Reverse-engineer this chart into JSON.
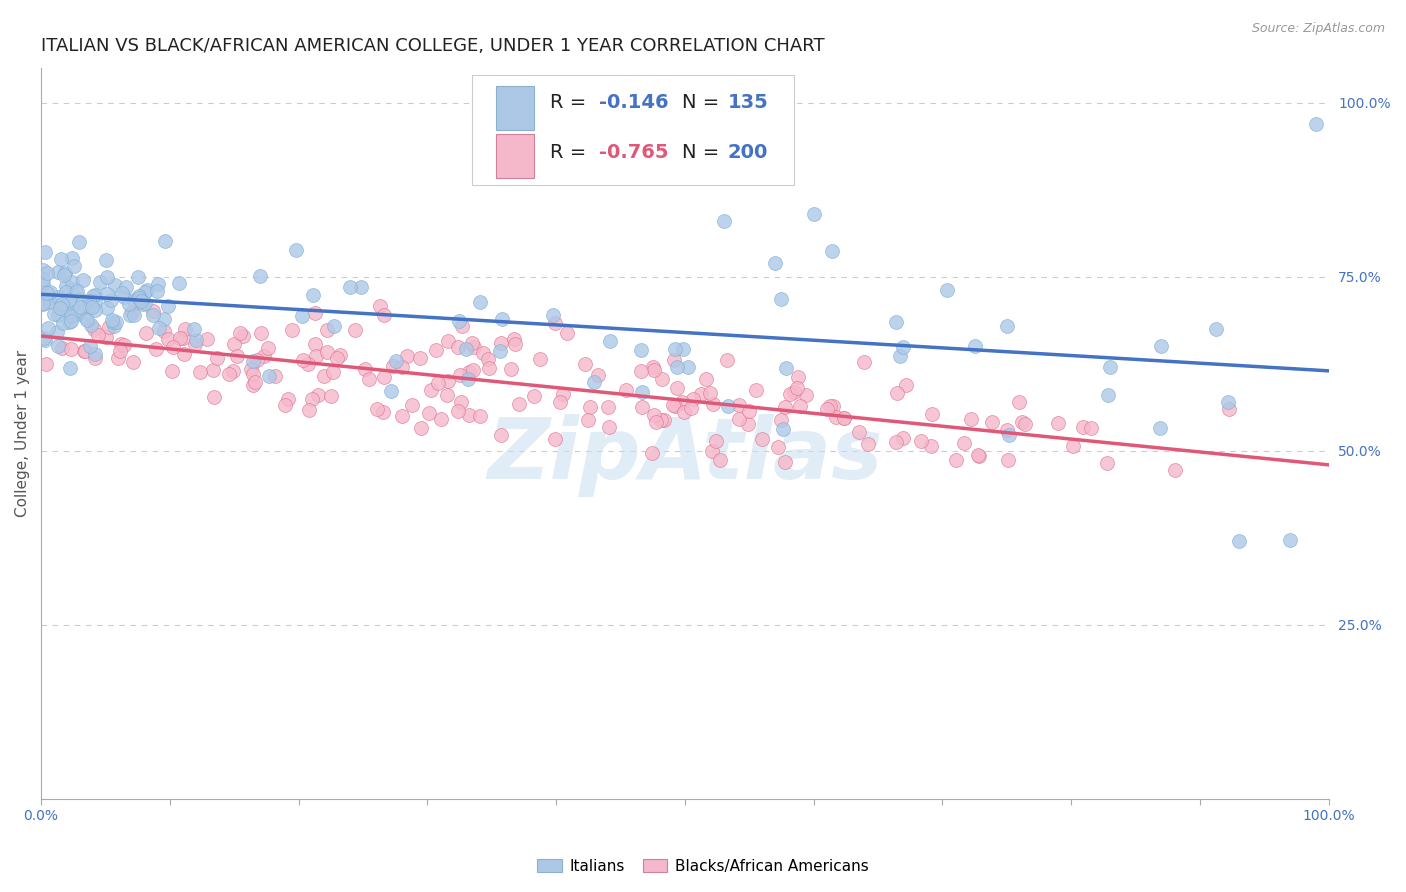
{
  "title": "ITALIAN VS BLACK/AFRICAN AMERICAN COLLEGE, UNDER 1 YEAR CORRELATION CHART",
  "source_text": "Source: ZipAtlas.com",
  "ylabel": "College, Under 1 year",
  "watermark": "ZipAtlas",
  "xlim": [
    0.0,
    1.0
  ],
  "ylim": [
    0.0,
    1.05
  ],
  "series": [
    {
      "name": "Italians",
      "color": "#adc8e6",
      "edge_color": "#7aadd4",
      "trend_color": "#4472c4",
      "R": -0.146,
      "N": 135
    },
    {
      "name": "Blacks/African Americans",
      "color": "#f5b8ca",
      "edge_color": "#e07090",
      "trend_color": "#e05878",
      "R": -0.765,
      "N": 200
    }
  ],
  "legend_R_color_blue": "#4472c4",
  "legend_R_color_pink": "#e05878",
  "legend_N_color": "#4472c4",
  "legend_labels": [
    "Italians",
    "Blacks/African Americans"
  ],
  "legend_patch_blue": "#adc8e6",
  "legend_patch_pink": "#f5b8ca",
  "background_color": "#ffffff",
  "grid_color": "#cccccc",
  "title_color": "#222222",
  "axis_color": "#aaaaaa",
  "watermark_color": "#c8ddf0",
  "title_fontsize": 13,
  "label_fontsize": 11,
  "tick_fontsize": 10,
  "source_fontsize": 9,
  "legend_fontsize": 14,
  "scatter_size": 100,
  "trend_linewidth": 2.5
}
